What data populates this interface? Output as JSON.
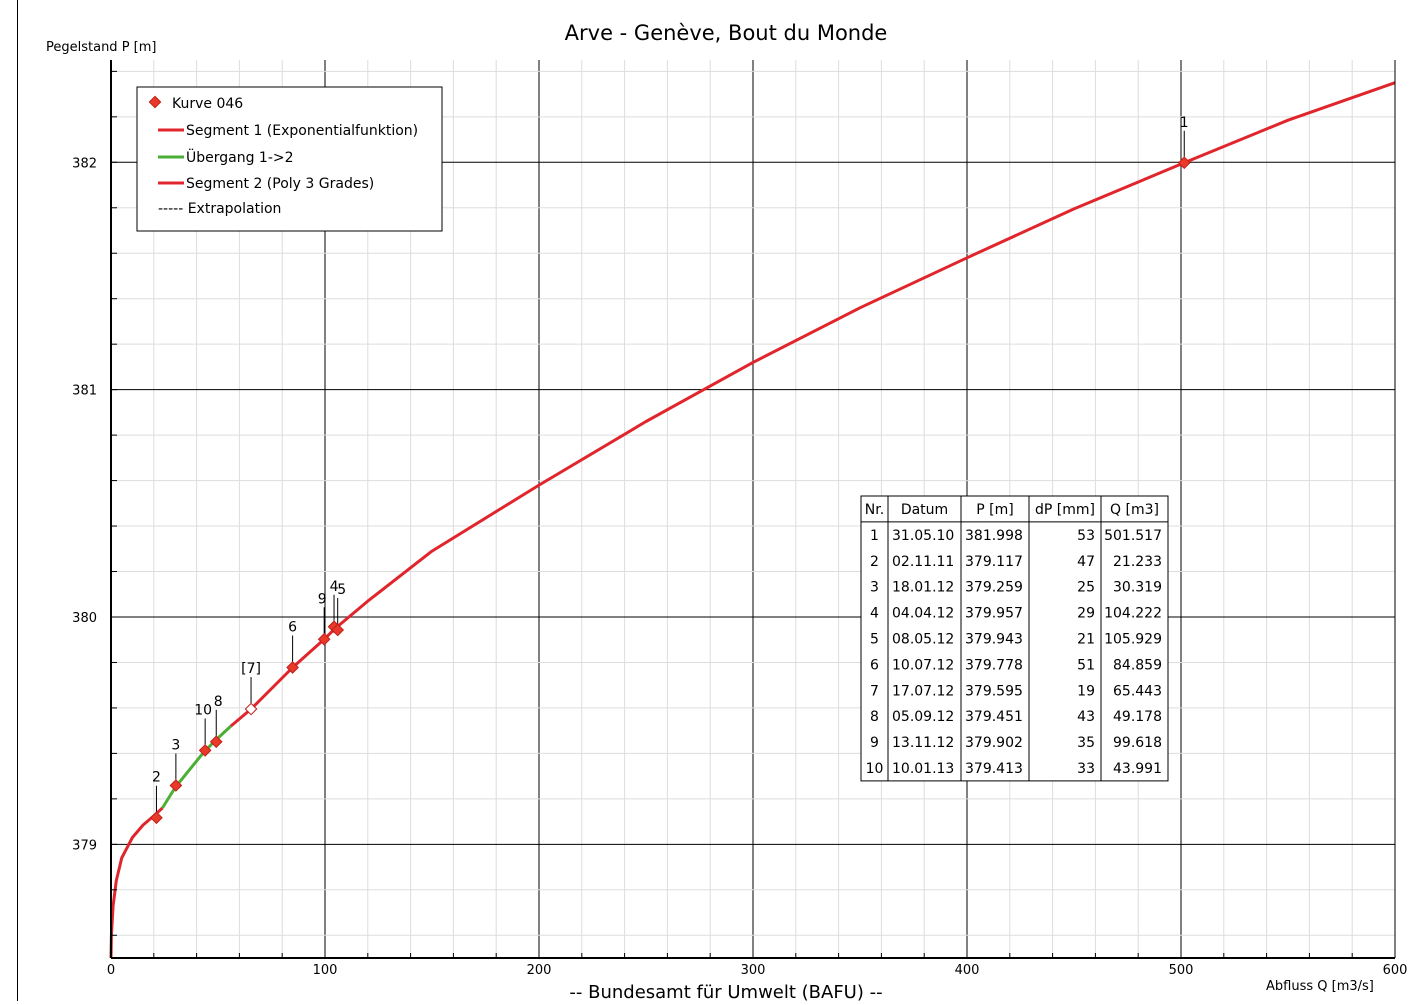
{
  "chart_data": {
    "type": "line",
    "title": "Arve - Genève, Bout du Monde",
    "ylabel": "Pegelstand P [m]",
    "xlabel": "Abfluss Q [m3/s]",
    "footer": "-- Bundesamt für Umwelt (BAFU) --",
    "xlim": [
      0,
      600
    ],
    "ylim": [
      378.5,
      382.45
    ],
    "x_ticks": [
      0,
      100,
      200,
      300,
      400,
      500,
      600
    ],
    "y_ticks": [
      379,
      380,
      381,
      382
    ],
    "grid": true,
    "legend_position": "top-left",
    "legend": [
      {
        "label": "Kurve 046",
        "kind": "marker",
        "color": "#e8392a"
      },
      {
        "label": "Segment 1 (Exponentialfunktion)",
        "kind": "line",
        "color": "#e0262c"
      },
      {
        "label": "Übergang 1->2",
        "kind": "line",
        "color": "#4caf35"
      },
      {
        "label": "Segment 2 (Poly 3 Grades)",
        "kind": "line",
        "color": "#e0262c"
      },
      {
        "label": "----- Extrapolation",
        "kind": "text",
        "color": "#000000"
      }
    ],
    "curve_color": "#e0262c",
    "transition_color": "#4caf35",
    "curve_segment_1": {
      "x": [
        0,
        0.2,
        1,
        2.5,
        5,
        10,
        15,
        20,
        24
      ],
      "y": [
        378.5,
        378.6,
        378.73,
        378.84,
        378.94,
        379.03,
        379.085,
        379.125,
        379.16
      ]
    },
    "curve_transition": {
      "x": [
        24,
        30,
        36,
        42,
        48,
        56
      ],
      "y": [
        379.16,
        379.25,
        379.32,
        379.39,
        379.45,
        379.52
      ]
    },
    "curve_segment_2": {
      "x": [
        56,
        65.443,
        84.859,
        99.618,
        104.222,
        120,
        150,
        200,
        250,
        300,
        350,
        400,
        450,
        501.517,
        550,
        600
      ],
      "y": [
        379.52,
        379.595,
        379.778,
        379.902,
        379.945,
        380.07,
        380.29,
        380.58,
        380.86,
        381.12,
        381.36,
        381.58,
        381.795,
        381.998,
        382.185,
        382.35
      ]
    },
    "measurements": {
      "headers": [
        "Nr.",
        "Datum",
        "P [m]",
        "dP [mm]",
        "Q [m3]"
      ],
      "rows": [
        [
          "1",
          "31.05.10",
          "381.998",
          "53",
          "501.517"
        ],
        [
          "2",
          "02.11.11",
          "379.117",
          "47",
          "21.233"
        ],
        [
          "3",
          "18.01.12",
          "379.259",
          "25",
          "30.319"
        ],
        [
          "4",
          "04.04.12",
          "379.957",
          "29",
          "104.222"
        ],
        [
          "5",
          "08.05.12",
          "379.943",
          "21",
          "105.929"
        ],
        [
          "6",
          "10.07.12",
          "379.778",
          "51",
          "84.859"
        ],
        [
          "7",
          "17.07.12",
          "379.595",
          "19",
          "65.443"
        ],
        [
          "8",
          "05.09.12",
          "379.451",
          "43",
          "49.178"
        ],
        [
          "9",
          "13.11.12",
          "379.902",
          "35",
          "99.618"
        ],
        [
          "10",
          "10.01.13",
          "379.413",
          "33",
          "43.991"
        ]
      ]
    },
    "points": [
      {
        "label": "1",
        "x": 501.517,
        "y": 381.998,
        "hollow": false
      },
      {
        "label": "2",
        "x": 21.233,
        "y": 379.117,
        "hollow": false
      },
      {
        "label": "3",
        "x": 30.319,
        "y": 379.259,
        "hollow": false
      },
      {
        "label": "4",
        "x": 104.222,
        "y": 379.957,
        "hollow": false
      },
      {
        "label": "5",
        "x": 105.929,
        "y": 379.943,
        "hollow": false
      },
      {
        "label": "6",
        "x": 84.859,
        "y": 379.778,
        "hollow": false
      },
      {
        "label": "[7]",
        "x": 65.443,
        "y": 379.595,
        "hollow": true
      },
      {
        "label": "8",
        "x": 49.178,
        "y": 379.451,
        "hollow": false
      },
      {
        "label": "9",
        "x": 99.618,
        "y": 379.902,
        "hollow": false
      },
      {
        "label": "10",
        "x": 43.991,
        "y": 379.413,
        "hollow": false
      }
    ]
  }
}
